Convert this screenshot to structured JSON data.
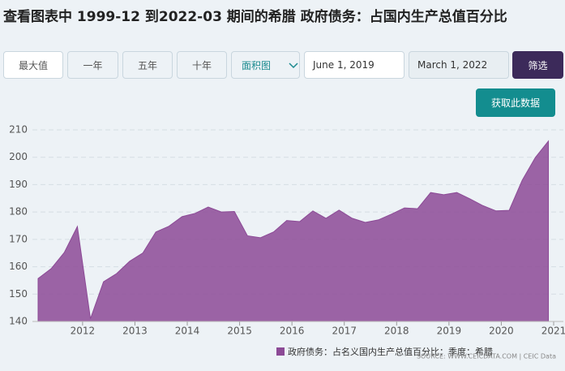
{
  "chart_data": {
    "type": "area",
    "title": "查看图表中 1999-12 到2022-03 期间的希腊 政府债务：占国内生产总值百分比",
    "x": [
      2011.15,
      2011.4,
      2011.65,
      2011.9,
      2012.15,
      2012.4,
      2012.65,
      2012.9,
      2013.15,
      2013.4,
      2013.65,
      2013.9,
      2014.15,
      2014.4,
      2014.65,
      2014.9,
      2015.15,
      2015.4,
      2015.65,
      2015.9,
      2016.15,
      2016.4,
      2016.65,
      2016.9,
      2017.15,
      2017.4,
      2017.65,
      2017.9,
      2018.15,
      2018.4,
      2018.65,
      2018.9,
      2019.15,
      2019.4,
      2019.65,
      2019.9,
      2020.15,
      2020.4,
      2020.65,
      2020.9
    ],
    "series": [
      {
        "name": "政府债务：占名义国内生产总值百分比：季度：希腊",
        "color": "#8c4a96",
        "values": [
          155.7,
          159.3,
          165.2,
          174.7,
          141,
          154.5,
          157.5,
          162,
          165,
          172.7,
          174.8,
          178.3,
          179.5,
          181.8,
          180,
          180.2,
          171.3,
          170.6,
          172.7,
          176.9,
          176.5,
          180.4,
          177.7,
          180.7,
          177.7,
          176.2,
          177.1,
          179.2,
          181.5,
          181.2,
          187.1,
          186.3,
          187.1,
          184.8,
          182.3,
          180.4,
          180.6,
          191.6,
          199.9,
          205.9
        ]
      }
    ],
    "xlim": [
      2011.15,
      2021
    ],
    "xticks": [
      2012,
      2013,
      2014,
      2015,
      2016,
      2017,
      2018,
      2019,
      2020,
      2021
    ],
    "ylim": [
      140,
      210
    ],
    "yticks": [
      140,
      150,
      160,
      170,
      180,
      190,
      200,
      210
    ],
    "grid": true,
    "source": "SOURCE: WWW.CEICDATA.COM | CEIC Data"
  },
  "controls": {
    "range_buttons": [
      "最大值",
      "一年",
      "五年",
      "十年"
    ],
    "chart_type": "面积图",
    "start_date": "June 1, 2019",
    "end_date": "March 1, 2022",
    "filter_button": "筛选",
    "download_button": "获取此数据"
  }
}
